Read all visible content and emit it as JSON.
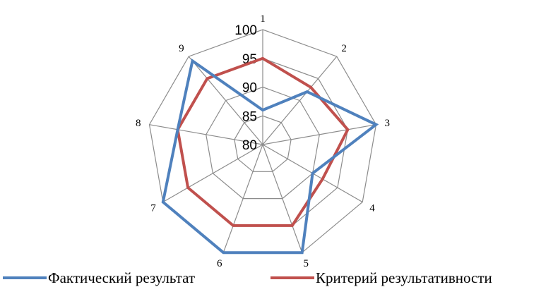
{
  "chart_data": {
    "type": "radar",
    "categories": [
      "1",
      "2",
      "3",
      "4",
      "5",
      "6",
      "7",
      "8",
      "9"
    ],
    "rlim": [
      80,
      100
    ],
    "rticks": [
      80,
      85,
      90,
      95,
      100
    ],
    "grid": true,
    "legend_position": "bottom",
    "series": [
      {
        "name": "Фактический результат",
        "color": "#4F81BD",
        "values": [
          86,
          92,
          100,
          90,
          100,
          100,
          100,
          95,
          99
        ]
      },
      {
        "name": "Критерий результативности",
        "color": "#C0504D",
        "values": [
          95,
          93,
          95,
          92,
          95,
          95,
          95,
          95,
          95
        ]
      }
    ]
  }
}
